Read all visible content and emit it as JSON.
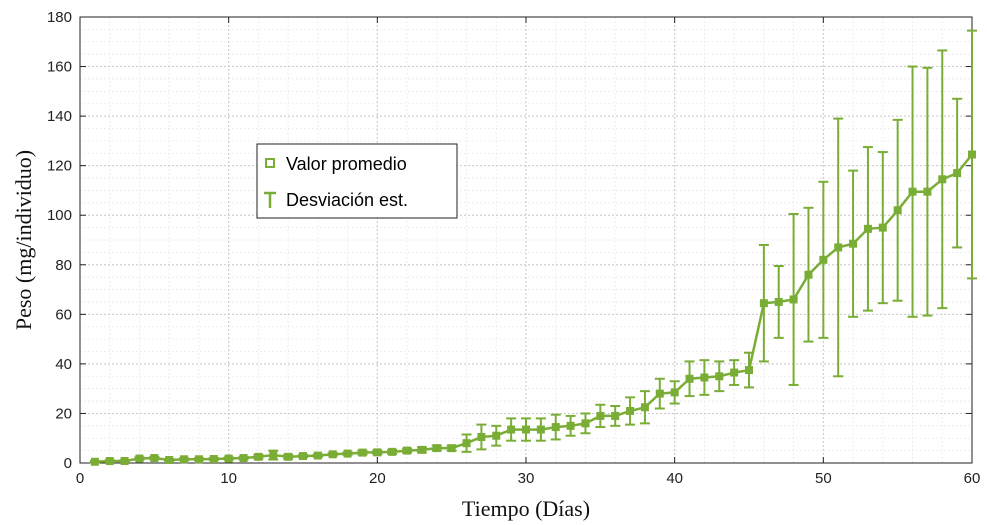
{
  "chart_data": {
    "type": "line",
    "title": "",
    "xlabel": "Tiempo (Días)",
    "ylabel": "Peso (mg/individuo)",
    "xlim": [
      0,
      60
    ],
    "ylim": [
      0,
      180
    ],
    "x_ticks": [
      0,
      10,
      20,
      30,
      40,
      50,
      60
    ],
    "y_ticks": [
      0,
      20,
      40,
      60,
      80,
      100,
      120,
      140,
      160,
      180
    ],
    "x_tick_labels": [
      "0",
      "10",
      "20",
      "30",
      "40",
      "50",
      "60"
    ],
    "y_tick_labels": [
      "0",
      "20",
      "40",
      "60",
      "80",
      "100",
      "120",
      "140",
      "160",
      "180"
    ],
    "grid": true,
    "minor_grid": true,
    "legend_position": "center-left",
    "color": "#7aad36",
    "legend": {
      "mean_label": "Valor promedio",
      "sd_label": "Desviación est."
    },
    "series": [
      {
        "name": "Valor promedio",
        "error_name": "Desviación est.",
        "x": [
          1,
          2,
          3,
          4,
          5,
          6,
          7,
          8,
          9,
          10,
          11,
          12,
          13,
          14,
          15,
          16,
          17,
          18,
          19,
          20,
          21,
          22,
          23,
          24,
          25,
          26,
          27,
          28,
          29,
          30,
          31,
          32,
          33,
          34,
          35,
          36,
          37,
          38,
          39,
          40,
          41,
          42,
          43,
          44,
          45,
          46,
          47,
          48,
          49,
          50,
          51,
          52,
          53,
          54,
          55,
          56,
          57,
          58,
          59,
          60
        ],
        "y": [
          0.5,
          0.8,
          0.8,
          1.8,
          2.0,
          1.2,
          1.5,
          1.5,
          1.6,
          1.8,
          2.0,
          2.5,
          3.2,
          2.5,
          2.8,
          3.0,
          3.5,
          3.8,
          4.2,
          4.3,
          4.5,
          5.0,
          5.3,
          6.0,
          6.0,
          8.0,
          10.5,
          11.0,
          13.5,
          13.5,
          13.5,
          14.5,
          15.0,
          16.0,
          19.0,
          19.0,
          21.0,
          22.5,
          28.0,
          28.5,
          34.0,
          34.5,
          35.0,
          36.5,
          37.5,
          64.5,
          65.0,
          66.0,
          76.0,
          82.0,
          87.0,
          88.5,
          94.5,
          95.0,
          102.0,
          109.5,
          109.5,
          114.5,
          117.0,
          124.5
        ],
        "err": [
          0.3,
          0.3,
          0.3,
          0.5,
          0.5,
          0.4,
          0.4,
          0.4,
          0.4,
          0.5,
          0.5,
          0.8,
          1.8,
          0.8,
          0.5,
          0.5,
          0.5,
          0.5,
          0.8,
          0.8,
          0.8,
          0.8,
          1.0,
          1.0,
          1.0,
          3.5,
          5.0,
          4.0,
          4.5,
          4.5,
          4.5,
          5.0,
          4.0,
          4.0,
          4.5,
          4.0,
          5.5,
          6.5,
          6.0,
          4.5,
          7.0,
          7.0,
          6.0,
          5.0,
          7.0,
          23.5,
          14.5,
          34.5,
          27.0,
          31.5,
          52.0,
          29.5,
          33.0,
          30.5,
          36.5,
          50.5,
          50.0,
          52.0,
          30.0,
          50.0
        ]
      }
    ]
  }
}
